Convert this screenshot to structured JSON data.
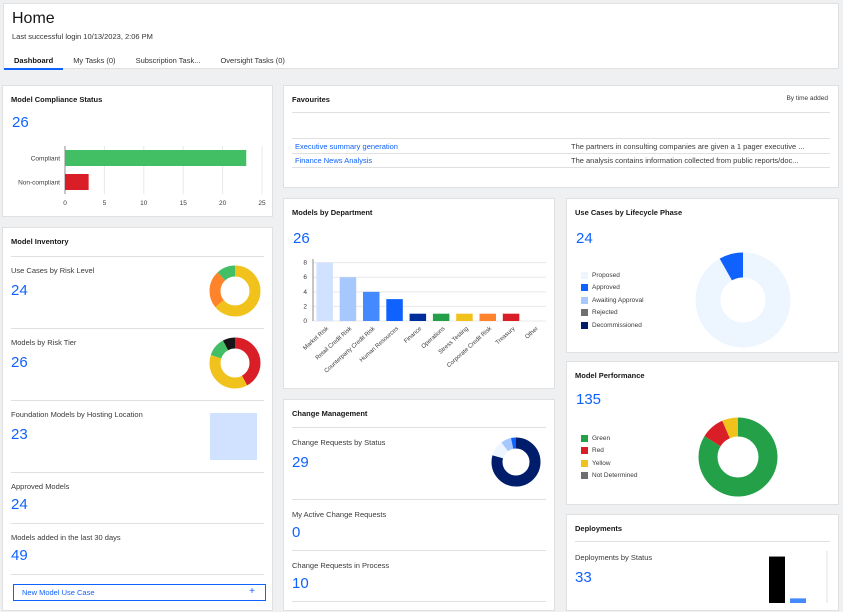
{
  "header": {
    "title": "Home",
    "last_login": "Last successful login 10/13/2023, 2:06 PM",
    "tabs": [
      {
        "label": "Dashboard",
        "active": true
      },
      {
        "label": "My Tasks (0)"
      },
      {
        "label": "Subscription Task..."
      },
      {
        "label": "Oversight Tasks (0)"
      }
    ]
  },
  "compliance": {
    "title": "Model Compliance Status",
    "count": "26",
    "chart_data": {
      "type": "bar",
      "orientation": "horizontal",
      "categories": [
        "Compliant",
        "Non-compliant"
      ],
      "values": [
        23,
        3
      ],
      "colors": [
        "#42be65",
        "#da1e28"
      ],
      "xticks": [
        "0",
        "5",
        "10",
        "15",
        "20",
        "25"
      ],
      "xlim": [
        0,
        25
      ]
    }
  },
  "inventory": {
    "title": "Model Inventory",
    "sections": [
      {
        "label": "Use Cases by Risk Level",
        "count": "24"
      },
      {
        "label": "Models by Risk Tier",
        "count": "26"
      },
      {
        "label": "Foundation Models by Hosting Location",
        "count": "23"
      },
      {
        "label": "Approved Models",
        "count": "24"
      },
      {
        "label": "Models added in the last 30 days",
        "count": "49"
      }
    ],
    "risk_level_donut": {
      "type": "pie",
      "values": [
        64,
        24,
        12
      ],
      "colors": [
        "#f1c21b",
        "#ff832b",
        "#42be65"
      ]
    },
    "risk_tier_donut": {
      "type": "pie",
      "values": [
        42,
        38,
        12,
        8
      ],
      "colors": [
        "#da1e28",
        "#f1c21b",
        "#42be65",
        "#161616"
      ]
    },
    "hosting_color": "#d0e2ff",
    "new_button": "New Model Use Case",
    "new_button_icon": "+"
  },
  "favourites": {
    "title": "Favourites",
    "sort_label": "By time added",
    "items": [
      {
        "name": "Executive summary generation",
        "desc": "The partners in consulting companies are given a 1 pager executive ..."
      },
      {
        "name": "Finance News Analysis",
        "desc": "The analysis contains information collected from public reports/doc..."
      }
    ]
  },
  "departments": {
    "title": "Models by Department",
    "count": "26",
    "chart_data": {
      "type": "bar",
      "categories": [
        "Market Risk",
        "Retail Credit Risk",
        "Counterparty Credit Risk",
        "Human Resources",
        "Finance",
        "Operations",
        "Stress Testing",
        "Corporate Credit Risk",
        "Treasury",
        "Other"
      ],
      "values": [
        8,
        6,
        4,
        3,
        1,
        1,
        1,
        1,
        1,
        0
      ],
      "colors": [
        "#d0e2ff",
        "#a6c8ff",
        "#4589ff",
        "#0f62fe",
        "#002d9c",
        "#24a148",
        "#f1c21b",
        "#ff832b",
        "#da1e28",
        "#ffffff"
      ],
      "yticks": [
        "0",
        "2",
        "4",
        "6",
        "8"
      ],
      "ylim": [
        0,
        8.5
      ]
    }
  },
  "lifecycle": {
    "title": "Use Cases by Lifecycle Phase",
    "count": "24",
    "legend": [
      {
        "label": "Proposed",
        "color": "#edf5ff"
      },
      {
        "label": "Approved",
        "color": "#0f62fe"
      },
      {
        "label": "Awaiting Approval",
        "color": "#a6c8ff"
      },
      {
        "label": "Rejected",
        "color": "#6f6f6f"
      },
      {
        "label": "Decommissioned",
        "color": "#001d6c"
      }
    ],
    "chart_data": {
      "type": "pie",
      "values": [
        22,
        2,
        0,
        0,
        0
      ]
    }
  },
  "performance": {
    "title": "Model Performance",
    "count": "135",
    "legend": [
      {
        "label": "Green",
        "color": "#24a148"
      },
      {
        "label": "Red",
        "color": "#da1e28"
      },
      {
        "label": "Yellow",
        "color": "#f1c21b"
      },
      {
        "label": "Not Determined",
        "color": "#6f6f6f"
      }
    ],
    "chart_data": {
      "type": "pie",
      "values": [
        113,
        13,
        9,
        0
      ]
    }
  },
  "change": {
    "title": "Change Management",
    "sections": [
      {
        "label": "Change Requests by Status",
        "count": "29"
      },
      {
        "label": "My Active Change Requests",
        "count": "0"
      },
      {
        "label": "Change Requests in Process",
        "count": "10"
      }
    ],
    "status_donut": {
      "type": "pie",
      "values": [
        23,
        3,
        2,
        1
      ],
      "colors": [
        "#001d6c",
        "#edf5ff",
        "#a6c8ff",
        "#0f62fe"
      ]
    }
  },
  "deployments": {
    "title": "Deployments",
    "section_label": "Deployments by Status",
    "count": "33",
    "chart_data": {
      "type": "bar",
      "values": [
        30,
        3
      ],
      "colors": [
        "#000000",
        "#4589ff"
      ],
      "ylim": [
        0,
        31
      ]
    }
  }
}
